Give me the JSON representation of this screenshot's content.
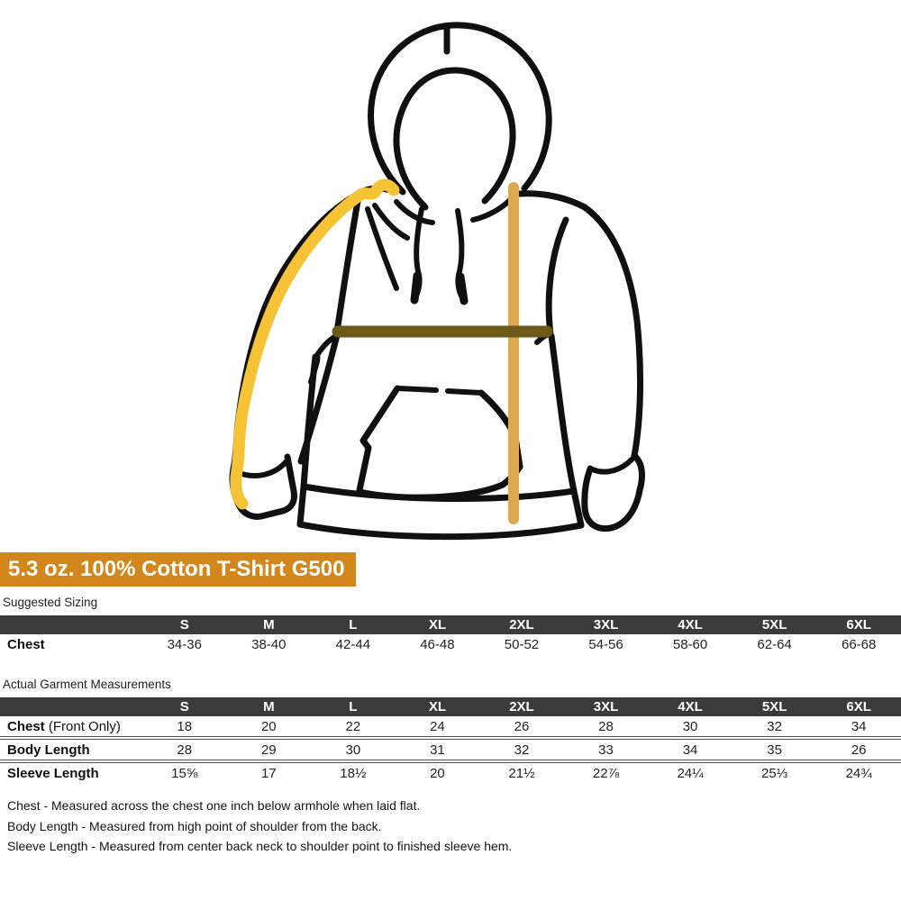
{
  "title_banner": {
    "text": "5.3 oz. 100% Cotton T-Shirt G500",
    "bg_color": "#D3861B",
    "text_color": "#FFFFFF"
  },
  "diagram": {
    "subject": "hooded sweatshirt line drawing with measurement indicator lines",
    "outline_color": "#101010",
    "sleeve_length_line_color": "#F5C335",
    "chest_line_color": "#6E591B",
    "body_length_line_color": "#DCA94F"
  },
  "suggested_sizing": {
    "label": "Suggested Sizing",
    "columns": [
      "S",
      "M",
      "L",
      "XL",
      "2XL",
      "3XL",
      "4XL",
      "5XL",
      "6XL"
    ],
    "rows": [
      {
        "label": "Chest",
        "label_suffix": "",
        "values": [
          "34-36",
          "38-40",
          "42-44",
          "46-48",
          "50-52",
          "54-56",
          "58-60",
          "62-64",
          "66-68"
        ]
      }
    ]
  },
  "garment_measurements": {
    "label": "Actual Garment Measurements",
    "columns": [
      "S",
      "M",
      "L",
      "XL",
      "2XL",
      "3XL",
      "4XL",
      "5XL",
      "6XL"
    ],
    "rows": [
      {
        "label": "Chest",
        "label_suffix": " (Front Only)",
        "values": [
          "18",
          "20",
          "22",
          "24",
          "26",
          "28",
          "30",
          "32",
          "34"
        ]
      },
      {
        "label": "Body Length",
        "label_suffix": "",
        "values": [
          "28",
          "29",
          "30",
          "31",
          "32",
          "33",
          "34",
          "35",
          "26"
        ]
      },
      {
        "label": "Sleeve Length",
        "label_suffix": "",
        "values": [
          "15⅝",
          "17",
          "18½",
          "20",
          "21½",
          "22⅞",
          "24¼",
          "25⅓",
          "24¾"
        ]
      }
    ]
  },
  "footnotes": [
    "Chest - Measured across the chest one inch below armhole when laid flat.",
    "Body Length - Measured from high point of shoulder from the back.",
    "Sleeve Length - Measured from center back neck to shoulder point to finished sleeve hem."
  ],
  "table_style": {
    "header_bg": "#3B3B3B",
    "header_text": "#FFFFFF"
  }
}
